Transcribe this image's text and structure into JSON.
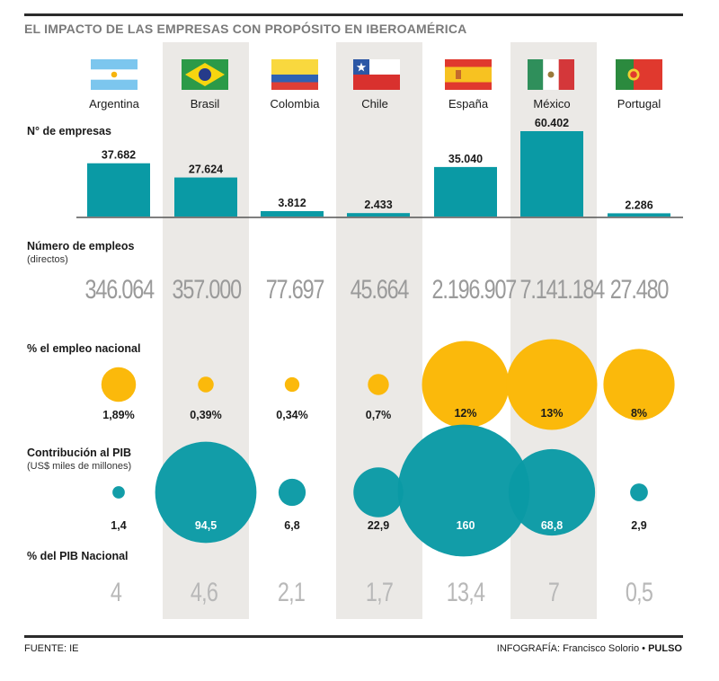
{
  "title": "EL IMPACTO DE LAS EMPRESAS CON PROPÓSITO EN IBEROAMÉRICA",
  "source": "FUENTE: IE",
  "credit_label": "INFOGRAFÍA: Francisco Solorio •",
  "credit_brand": "PULSO",
  "rows": {
    "empresas": "N° de empresas",
    "empleos": "Número de empleos",
    "empleos_sub": "(directos)",
    "pct_empleo": "% el empleo nacional",
    "pib": "Contribución al PIB",
    "pib_sub": "(US$ miles de millones)",
    "pct_pib": "% del PIB Nacional"
  },
  "colors": {
    "teal": "#0a9aa5",
    "yellow": "#fbb90b",
    "band": "#ebe9e6"
  },
  "countries": [
    {
      "name": "Argentina",
      "flag": "flag-argentina",
      "empresas": "37.682",
      "empleos": "346.064",
      "pct_empleo": "1,89%",
      "pib": "1,4",
      "pct_pib": "4"
    },
    {
      "name": "Brasil",
      "flag": "flag-brazil",
      "empresas": "27.624",
      "empleos": "357.000",
      "pct_empleo": "0,39%",
      "pib": "94,5",
      "pct_pib": "4,6"
    },
    {
      "name": "Colombia",
      "flag": "flag-colombia",
      "empresas": "3.812",
      "empleos": "77.697",
      "pct_empleo": "0,34%",
      "pib": "6,8",
      "pct_pib": "2,1"
    },
    {
      "name": "Chile",
      "flag": "flag-chile",
      "empresas": "2.433",
      "empleos": "45.664",
      "pct_empleo": "0,7%",
      "pib": "22,9",
      "pct_pib": "1,7"
    },
    {
      "name": "España",
      "flag": "flag-spain",
      "empresas": "35.040",
      "empleos": "2.196.907",
      "pct_empleo": "12%",
      "pib": "160",
      "pct_pib": "13,4"
    },
    {
      "name": "México",
      "flag": "flag-mexico",
      "empresas": "60.402",
      "empleos": "7.141.184",
      "pct_empleo": "13%",
      "pib": "68,8",
      "pct_pib": "7"
    },
    {
      "name": "Portugal",
      "flag": "flag-portugal",
      "empresas": "2.286",
      "empleos": "27.480",
      "pct_empleo": "8%",
      "pib": "2,9",
      "pct_pib": "0,5"
    }
  ],
  "chart_data": {
    "type": "bar",
    "categories": [
      "Argentina",
      "Brasil",
      "Colombia",
      "Chile",
      "España",
      "México",
      "Portugal"
    ],
    "series": [
      {
        "name": "N° de empresas",
        "values": [
          37682,
          27624,
          3812,
          2433,
          35040,
          60402,
          2286
        ]
      },
      {
        "name": "Número de empleos",
        "values": [
          346064,
          357000,
          77697,
          45664,
          2196907,
          7141184,
          27480
        ]
      },
      {
        "name": "% el empleo nacional",
        "values": [
          1.89,
          0.39,
          0.34,
          0.7,
          12,
          13,
          8
        ]
      },
      {
        "name": "Contribución al PIB",
        "values": [
          1.4,
          94.5,
          6.8,
          22.9,
          160,
          68.8,
          2.9
        ]
      },
      {
        "name": "% del PIB Nacional",
        "values": [
          4,
          4.6,
          2.1,
          1.7,
          13.4,
          7,
          0.5
        ]
      }
    ],
    "title": "EL IMPACTO DE LAS EMPRESAS CON PROPÓSITO EN IBEROAMÉRICA"
  }
}
